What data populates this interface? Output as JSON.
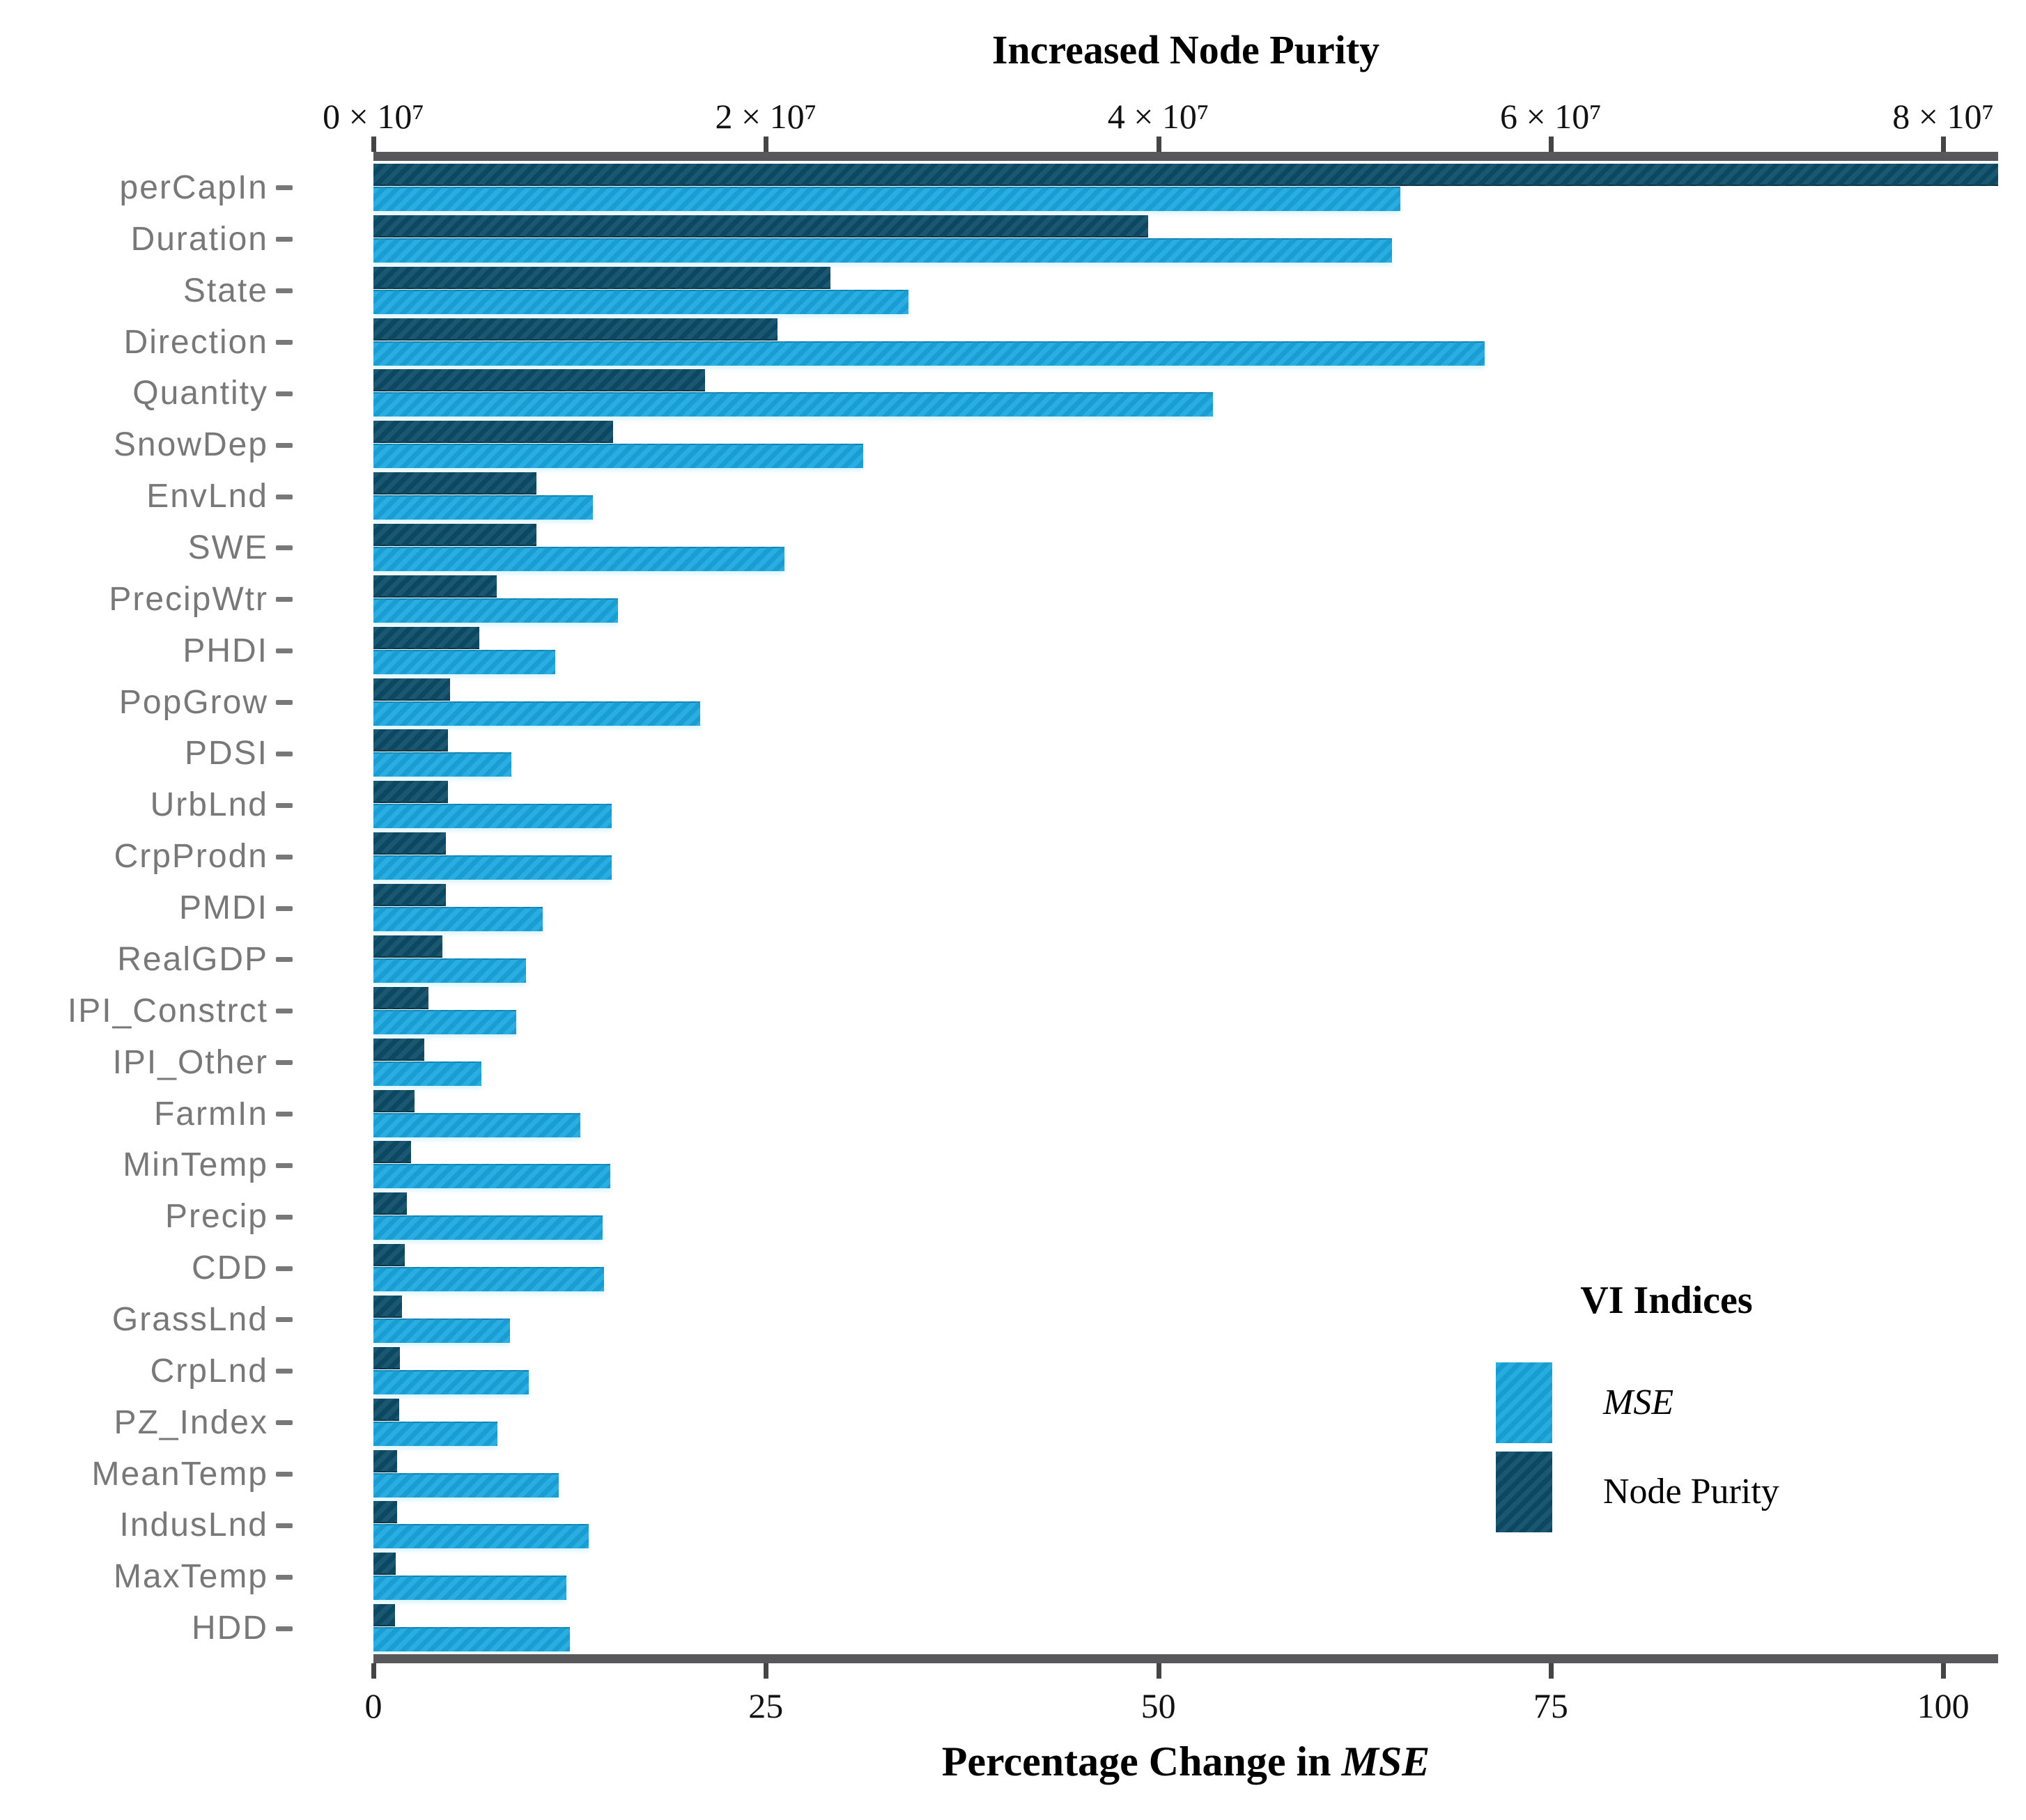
{
  "figure": {
    "top_axis": {
      "title": "Increased Node Purity",
      "ticks": [
        {
          "value": 0,
          "label": "0 × 10⁷"
        },
        {
          "value": 20000000,
          "label": "2 × 10⁷"
        },
        {
          "value": 40000000,
          "label": "4 × 10⁷"
        },
        {
          "value": 60000000,
          "label": "6 × 10⁷"
        },
        {
          "value": 80000000,
          "label": "8 × 10⁷"
        }
      ]
    },
    "bottom_axis": {
      "title_prefix": "Percentage Change in ",
      "title_italic": "MSE",
      "ticks": [
        {
          "value": 0,
          "label": "0"
        },
        {
          "value": 25,
          "label": "25"
        },
        {
          "value": 50,
          "label": "50"
        },
        {
          "value": 75,
          "label": "75"
        },
        {
          "value": 100,
          "label": "100"
        }
      ]
    },
    "legend": {
      "title": "VI Indices",
      "items": [
        {
          "label": "MSE",
          "italic": true,
          "color": "#1AA7DE"
        },
        {
          "label": "Node Purity",
          "italic": false,
          "color": "#0E4D68"
        }
      ]
    }
  },
  "chart_data": {
    "type": "bar",
    "orientation": "horizontal",
    "title": "Increased Node Purity",
    "xlabel_bottom": "Percentage Change in MSE",
    "xlabel_top": "Increased Node Purity",
    "legend_title": "VI Indices",
    "legend_position": "right-middle",
    "grid": false,
    "xlim_top": [
      0,
      82800000
    ],
    "xlim_bottom": [
      0,
      103.5
    ],
    "categories": [
      "perCapIn",
      "Duration",
      "State",
      "Direction",
      "Quantity",
      "SnowDep",
      "EnvLnd",
      "SWE",
      "PrecipWtr",
      "PHDI",
      "PopGrow",
      "PDSI",
      "UrbLnd",
      "CrpProdn",
      "PMDI",
      "RealGDP",
      "IPI_Constrct",
      "IPI_Other",
      "FarmIn",
      "MinTemp",
      "Precip",
      "CDD",
      "GrassLnd",
      "CrpLnd",
      "PZ_Index",
      "MeanTemp",
      "IndusLnd",
      "MaxTemp",
      "HDD"
    ],
    "series": [
      {
        "name": "MSE",
        "axis": "bottom",
        "units": "percent",
        "color": "#1AA7DE",
        "values": [
          65.4,
          64.9,
          34.1,
          70.8,
          53.5,
          31.2,
          14.0,
          26.2,
          15.6,
          11.6,
          20.8,
          8.8,
          15.2,
          15.2,
          10.8,
          9.7,
          9.1,
          6.9,
          13.2,
          15.1,
          14.6,
          14.7,
          8.7,
          9.9,
          7.9,
          11.8,
          13.7,
          12.3,
          12.5
        ]
      },
      {
        "name": "Node Purity",
        "axis": "top",
        "units": "node_purity",
        "color": "#0E4D68",
        "values": [
          82800000,
          39500000,
          23300000,
          20600000,
          16900000,
          12200000,
          8300000,
          8300000,
          6300000,
          5400000,
          3900000,
          3800000,
          3800000,
          3700000,
          3700000,
          3500000,
          2800000,
          2600000,
          2100000,
          1900000,
          1700000,
          1600000,
          1450000,
          1350000,
          1300000,
          1200000,
          1200000,
          1150000,
          1100000
        ]
      }
    ]
  },
  "colors": {
    "axis_line": "#58585A",
    "axis_tick": "#454545",
    "tick_label": "#121212",
    "category_label": "#787878",
    "background": "#ffffff"
  }
}
